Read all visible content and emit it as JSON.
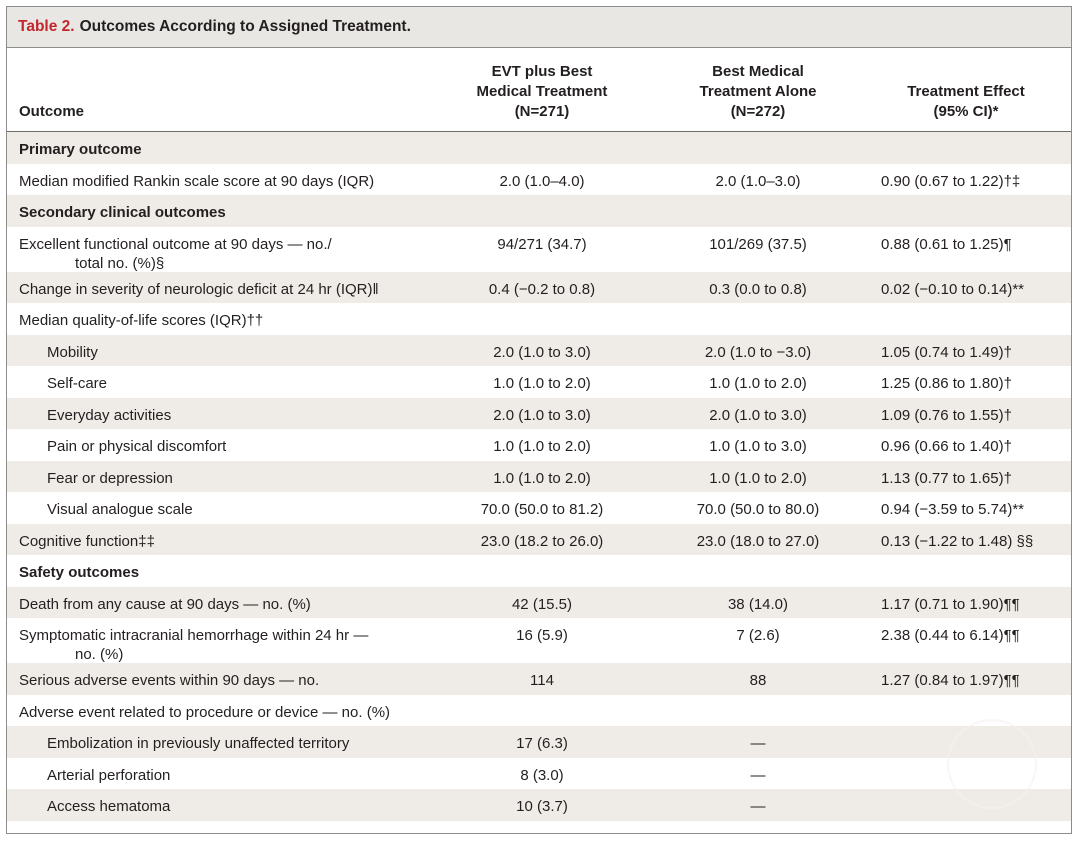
{
  "table": {
    "label": "Table 2.",
    "title": "Outcomes According to Assigned Treatment."
  },
  "header": {
    "outcome": "Outcome",
    "col1": [
      "EVT plus Best",
      "Medical Treatment",
      "(N=271)"
    ],
    "col2": [
      "Best Medical",
      "Treatment Alone",
      "(N=272)"
    ],
    "col3": [
      "Treatment Effect",
      "(95% CI)*"
    ]
  },
  "rows": [
    {
      "label": "Primary outcome",
      "type": "section",
      "shade": true
    },
    {
      "label": "Median modified Rankin scale score at 90 days (IQR)",
      "evt": "2.0 (1.0–4.0)",
      "bmt": "2.0 (1.0–3.0)",
      "effect": "0.90 (0.67 to 1.22)†‡"
    },
    {
      "label": "Secondary clinical outcomes",
      "type": "section",
      "shade": true
    },
    {
      "label": "Excellent functional outcome at 90 days — no./",
      "label2": "total no. (%)§",
      "evt": "94/271 (34.7)",
      "bmt": "101/269 (37.5)",
      "effect": "0.88 (0.61 to 1.25)¶",
      "tall": true
    },
    {
      "label": "Change in severity of neurologic deficit at 24 hr (IQR)‖",
      "evt": "0.4 (−0.2 to 0.8)",
      "bmt": "0.3 (0.0 to 0.8)",
      "effect": "0.02 (−0.10 to 0.14)**",
      "shade": true
    },
    {
      "label": "Median quality-of-life scores (IQR)††"
    },
    {
      "label": "Mobility",
      "indent": true,
      "evt": "2.0 (1.0 to 3.0)",
      "bmt": "2.0 (1.0 to −3.0)",
      "effect": "1.05 (0.74 to 1.49)†",
      "shade": true
    },
    {
      "label": "Self-care",
      "indent": true,
      "evt": "1.0 (1.0 to 2.0)",
      "bmt": "1.0 (1.0 to 2.0)",
      "effect": "1.25 (0.86 to 1.80)†"
    },
    {
      "label": "Everyday activities",
      "indent": true,
      "evt": "2.0 (1.0 to 3.0)",
      "bmt": "2.0 (1.0 to 3.0)",
      "effect": "1.09 (0.76 to 1.55)†",
      "shade": true
    },
    {
      "label": "Pain or physical discomfort",
      "indent": true,
      "evt": "1.0 (1.0 to 2.0)",
      "bmt": "1.0 (1.0 to 3.0)",
      "effect": "0.96 (0.66 to 1.40)†"
    },
    {
      "label": "Fear or depression",
      "indent": true,
      "evt": "1.0 (1.0 to 2.0)",
      "bmt": "1.0 (1.0 to 2.0)",
      "effect": "1.13 (0.77 to 1.65)†",
      "shade": true
    },
    {
      "label": "Visual analogue scale",
      "indent": true,
      "evt": "70.0 (50.0 to 81.2)",
      "bmt": "70.0 (50.0 to 80.0)",
      "effect": "0.94 (−3.59 to 5.74)**"
    },
    {
      "label": "Cognitive function‡‡",
      "evt": "23.0 (18.2 to 26.0)",
      "bmt": "23.0 (18.0 to 27.0)",
      "effect": "0.13 (−1.22 to 1.48) §§",
      "shade": true
    },
    {
      "label": "Safety outcomes",
      "type": "section"
    },
    {
      "label": "Death from any cause at 90 days — no. (%)",
      "evt": "42 (15.5)",
      "bmt": "38 (14.0)",
      "effect": "1.17 (0.71 to 1.90)¶¶",
      "shade": true
    },
    {
      "label": "Symptomatic intracranial hemorrhage within 24 hr —",
      "label2": "no. (%)",
      "evt": "16 (5.9)",
      "bmt": "7 (2.6)",
      "effect": "2.38 (0.44 to 6.14)¶¶",
      "tall": true
    },
    {
      "label": "Serious adverse events within 90 days — no.",
      "evt": "114",
      "bmt": "88",
      "effect": "1.27 (0.84 to 1.97)¶¶",
      "shade": true
    },
    {
      "label": "Adverse event related to procedure or device — no. (%)"
    },
    {
      "label": "Embolization in previously unaffected territory",
      "indent": true,
      "evt": "17 (6.3)",
      "bmt": "—",
      "shade": true
    },
    {
      "label": "Arterial perforation",
      "indent": true,
      "evt": "8 (3.0)",
      "bmt": "—"
    },
    {
      "label": "Access hematoma",
      "indent": true,
      "evt": "10 (3.7)",
      "bmt": "—",
      "shade": true
    }
  ]
}
